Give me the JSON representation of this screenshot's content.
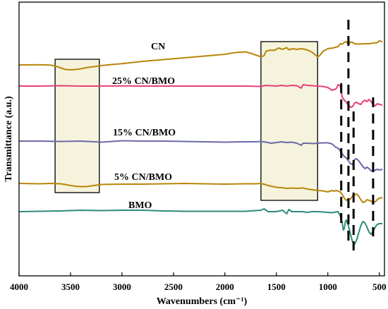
{
  "chart_data": {
    "type": "line",
    "title": "",
    "xlabel": "Wavenumbers (cm⁻¹)",
    "ylabel": "Transmittance (a.u.)",
    "x_reversed": true,
    "xlim": [
      4000,
      450
    ],
    "x_ticks": [
      4000,
      3500,
      3000,
      2500,
      2000,
      1500,
      1000,
      500
    ],
    "y_ticks_shown": false,
    "grid": false,
    "series": [
      {
        "name": "CN",
        "color": "#b8860b",
        "x": [
          4000,
          3900,
          3800,
          3700,
          3650,
          3600,
          3550,
          3500,
          3450,
          3400,
          3350,
          3300,
          3250,
          3200,
          3100,
          3000,
          2800,
          2600,
          2400,
          2200,
          2000,
          1900,
          1800,
          1750,
          1700,
          1650,
          1620,
          1600,
          1560,
          1520,
          1480,
          1440,
          1400,
          1380,
          1340,
          1300,
          1260,
          1220,
          1180,
          1150,
          1120,
          1100,
          1080,
          1050,
          1000,
          950,
          900,
          880,
          860,
          840,
          820,
          800,
          780,
          760,
          740,
          700,
          650,
          600,
          560,
          520,
          500,
          470
        ],
        "values": [
          92.0,
          92.0,
          91.8,
          92.2,
          93.5,
          96.0,
          98.5,
          99.0,
          98.5,
          97.5,
          96.0,
          95.0,
          94.0,
          93.0,
          91.5,
          90.2,
          87.0,
          84.5,
          82.0,
          79.5,
          77.0,
          74.5,
          73.5,
          75.5,
          78.0,
          80.5,
          79.0,
          72.5,
          71.0,
          71.5,
          68.0,
          70.0,
          67.5,
          70.5,
          69.0,
          70.0,
          69.0,
          70.0,
          72.0,
          74.5,
          78.0,
          80.5,
          79.0,
          73.0,
          69.0,
          68.0,
          66.0,
          62.0,
          62.5,
          60.0,
          59.0,
          63.0,
          59.5,
          60.0,
          62.0,
          62.5,
          62.0,
          62.0,
          61.0,
          60.5,
          57.5,
          59.5
        ]
      },
      {
        "name": "25% CN/BMO",
        "color": "#e8407a",
        "x": [
          4000,
          3800,
          3600,
          3400,
          3200,
          3000,
          2800,
          2600,
          2400,
          2200,
          2000,
          1800,
          1650,
          1600,
          1560,
          1500,
          1450,
          1400,
          1350,
          1300,
          1260,
          1240,
          1200,
          1100,
          1050,
          1000,
          960,
          940,
          920,
          900,
          880,
          860,
          840,
          820,
          800,
          780,
          760,
          740,
          720,
          700,
          680,
          660,
          640,
          620,
          600,
          580,
          560,
          540,
          520,
          500,
          470
        ],
        "values": [
          122.0,
          122.0,
          121.5,
          122.0,
          122.0,
          121.8,
          122.0,
          122.0,
          122.0,
          122.0,
          122.0,
          122.0,
          122.5,
          121.0,
          121.5,
          122.0,
          121.0,
          122.0,
          121.0,
          121.5,
          125.0,
          120.0,
          121.0,
          122.0,
          122.5,
          124.0,
          128.0,
          127.0,
          126.0,
          120.0,
          122.0,
          138.0,
          142.0,
          145.0,
          149.0,
          152.0,
          151.0,
          146.0,
          145.0,
          147.0,
          148.0,
          144.0,
          142.0,
          144.0,
          141.0,
          144.0,
          148.0,
          150.0,
          147.0,
          148.0,
          149.0
        ]
      },
      {
        "name": "15% CN/BMO",
        "color": "#6a6aa8",
        "x": [
          4000,
          3800,
          3600,
          3400,
          3200,
          3000,
          2800,
          2600,
          2400,
          2200,
          2000,
          1800,
          1700,
          1650,
          1600,
          1550,
          1500,
          1450,
          1400,
          1350,
          1300,
          1260,
          1240,
          1200,
          1150,
          1100,
          1050,
          1000,
          960,
          920,
          900,
          880,
          860,
          840,
          820,
          800,
          780,
          760,
          740,
          720,
          700,
          680,
          660,
          640,
          620,
          600,
          580,
          560,
          540,
          520,
          500,
          470
        ],
        "values": [
          200.0,
          200.0,
          200.5,
          200.0,
          201.5,
          199.5,
          200.0,
          200.0,
          200.5,
          201.0,
          201.5,
          201.0,
          201.0,
          200.5,
          201.5,
          203.0,
          202.0,
          201.0,
          202.0,
          201.5,
          203.0,
          206.0,
          203.0,
          203.0,
          203.5,
          203.0,
          202.5,
          202.5,
          204.0,
          209.0,
          210.0,
          214.0,
          218.0,
          222.0,
          224.0,
          228.0,
          232.0,
          233.0,
          226.0,
          225.0,
          228.0,
          232.0,
          236.0,
          239.0,
          237.0,
          239.0,
          242.0,
          243.0,
          241.0,
          240.0,
          241.0,
          240.0
        ]
      },
      {
        "name": "5% CN/BMO",
        "color": "#b8860b",
        "x": [
          4000,
          3800,
          3700,
          3600,
          3550,
          3500,
          3450,
          3400,
          3350,
          3300,
          3250,
          3200,
          3000,
          2800,
          2600,
          2400,
          2200,
          2000,
          1800,
          1700,
          1650,
          1600,
          1550,
          1500,
          1450,
          1400,
          1350,
          1300,
          1260,
          1240,
          1200,
          1150,
          1100,
          1050,
          1000,
          960,
          940,
          920,
          900,
          880,
          860,
          840,
          820,
          800,
          780,
          760,
          740,
          720,
          700,
          680,
          660,
          640,
          620,
          600,
          580,
          560,
          540,
          520,
          500,
          470
        ],
        "values": [
          260.0,
          260.5,
          260.0,
          260.5,
          261.5,
          263.0,
          264.0,
          264.5,
          264.5,
          263.5,
          262.5,
          261.5,
          261.0,
          261.0,
          260.5,
          260.0,
          260.5,
          261.0,
          260.5,
          260.5,
          260.0,
          262.0,
          264.0,
          265.5,
          266.0,
          267.0,
          266.5,
          267.0,
          266.5,
          266.5,
          268.0,
          269.0,
          270.0,
          270.5,
          272.0,
          270.0,
          271.0,
          270.0,
          271.0,
          272.0,
          276.0,
          281.0,
          284.0,
          282.0,
          282.0,
          278.0,
          276.0,
          275.0,
          278.0,
          283.0,
          287.0,
          286.0,
          283.0,
          284.0,
          285.0,
          287.0,
          286.0,
          283.0,
          281.0,
          280.0
        ]
      },
      {
        "name": "BMO",
        "color": "#2e8b7a",
        "x": [
          4000,
          3800,
          3600,
          3400,
          3200,
          3000,
          2800,
          2600,
          2400,
          2200,
          2000,
          1800,
          1650,
          1620,
          1580,
          1500,
          1440,
          1400,
          1380,
          1350,
          1300,
          1250,
          1200,
          1150,
          1100,
          1050,
          1000,
          960,
          920,
          900,
          880,
          860,
          850,
          840,
          830,
          820,
          800,
          780,
          760,
          740,
          720,
          700,
          680,
          660,
          640,
          620,
          600,
          580,
          560,
          540,
          520,
          500,
          470
        ],
        "values": [
          300.0,
          299.5,
          299.0,
          298.0,
          298.5,
          298.0,
          298.0,
          299.0,
          299.5,
          299.5,
          299.5,
          299.5,
          298.0,
          296.0,
          300.0,
          300.0,
          298.0,
          303.0,
          297.0,
          300.0,
          300.0,
          300.0,
          301.0,
          300.0,
          300.0,
          300.5,
          301.0,
          301.5,
          300.5,
          300.0,
          306.0,
          316.0,
          326.0,
          324.0,
          314.0,
          312.0,
          320.0,
          332.0,
          343.0,
          346.0,
          340.0,
          330.0,
          320.0,
          314.0,
          316.0,
          322.0,
          329.0,
          332.0,
          328.0,
          322.0,
          318.0,
          317.0,
          317.0
        ]
      }
    ],
    "highlight_regions": [
      {
        "x_range": [
          3650,
          3220
        ],
        "fill": "#f5f3dc"
      },
      {
        "x_range": [
          1650,
          1100
        ],
        "fill": "#f5f3dc"
      }
    ],
    "marker_lines": [
      {
        "x": 870,
        "y_range": [
          118,
          325
        ]
      },
      {
        "x": 800,
        "y_range": [
          28,
          345
        ]
      },
      {
        "x": 750,
        "y_range": [
          158,
          355
        ]
      },
      {
        "x": 560,
        "y_range": [
          138,
          335
        ]
      }
    ]
  }
}
